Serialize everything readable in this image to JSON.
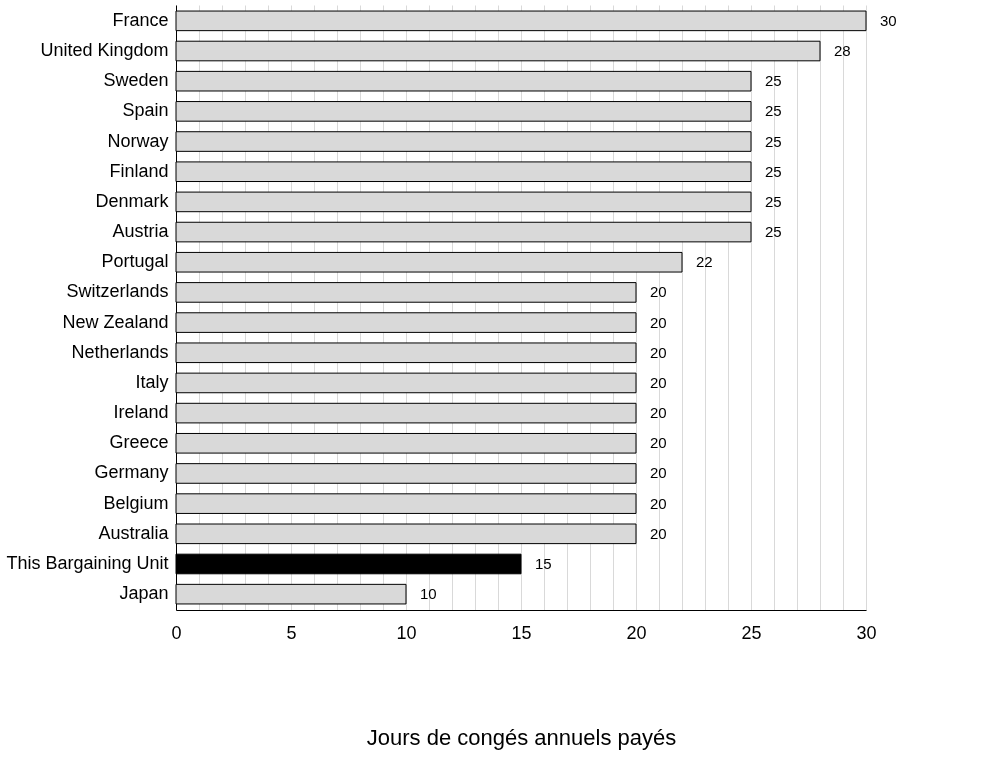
{
  "chart_data": {
    "type": "bar",
    "orientation": "horizontal",
    "xlabel": "Jours de congés annuels payés",
    "categories": [
      "France",
      "United Kingdom",
      "Sweden",
      "Spain",
      "Norway",
      "Finland",
      "Denmark",
      "Austria",
      "Portugal",
      "Switzerlands",
      "New Zealand",
      "Netherlands",
      "Italy",
      "Ireland",
      "Greece",
      "Germany",
      "Belgium",
      "Australia",
      "This Bargaining Unit",
      "Japan"
    ],
    "values": [
      30,
      28,
      25,
      25,
      25,
      25,
      25,
      25,
      22,
      20,
      20,
      20,
      20,
      20,
      20,
      20,
      20,
      20,
      15,
      10
    ],
    "colors": [
      "#d9d9d9",
      "#d9d9d9",
      "#d9d9d9",
      "#d9d9d9",
      "#d9d9d9",
      "#d9d9d9",
      "#d9d9d9",
      "#d9d9d9",
      "#d9d9d9",
      "#d9d9d9",
      "#d9d9d9",
      "#d9d9d9",
      "#d9d9d9",
      "#d9d9d9",
      "#d9d9d9",
      "#d9d9d9",
      "#d9d9d9",
      "#d9d9d9",
      "#000000",
      "#d9d9d9"
    ],
    "xlim": [
      0,
      30
    ],
    "xticks": [
      0,
      {
        "value": 1,
        "label": null
      },
      {
        "value": 2,
        "label": null
      },
      {
        "value": 3,
        "label": null
      },
      {
        "value": 4,
        "label": null
      },
      5,
      {
        "value": 6,
        "label": null
      },
      {
        "value": 7,
        "label": null
      },
      {
        "value": 8,
        "label": null
      },
      {
        "value": 9,
        "label": null
      },
      10,
      {
        "value": 11,
        "label": null
      },
      {
        "value": 12,
        "label": null
      },
      {
        "value": 13,
        "label": null
      },
      {
        "value": 14,
        "label": null
      },
      15,
      {
        "value": 16,
        "label": null
      },
      {
        "value": 17,
        "label": null
      },
      {
        "value": 18,
        "label": null
      },
      {
        "value": 19,
        "label": null
      },
      20,
      {
        "value": 21,
        "label": null
      },
      {
        "value": 22,
        "label": null
      },
      {
        "value": 23,
        "label": null
      },
      {
        "value": 24,
        "label": null
      },
      25,
      {
        "value": 26,
        "label": null
      },
      {
        "value": 27,
        "label": null
      },
      {
        "value": 28,
        "label": null
      },
      {
        "value": 29,
        "label": null
      },
      30
    ],
    "grid": "x",
    "data_labels": true
  }
}
